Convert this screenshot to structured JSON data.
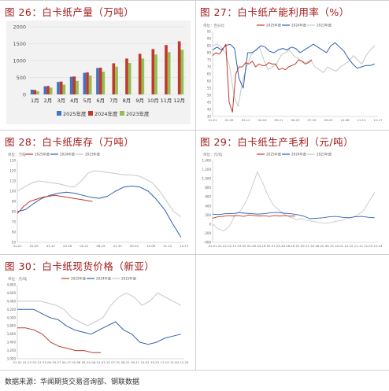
{
  "titles": {
    "p1": "图 26：白卡纸产量（万吨）",
    "p2": "图 27：白卡纸产能利用率（%）",
    "p3": "图 28：白卡纸库存（万吨）",
    "p4": "图 29：白卡纸生产毛利（元/吨）",
    "p5": "图 30：白卡纸现货价格（新亚）"
  },
  "source": "数据来源：华闻期货交易咨询部、钢联数据",
  "colors": {
    "s2025": "#4472c4",
    "s2024": "#c0392b",
    "s2023": "#92c050",
    "line2025": "#c0392b",
    "line2024": "#2f5fb3",
    "line2023": "#c8c8c8",
    "title": "#a31919"
  },
  "chart_data": [
    {
      "type": "bar",
      "title": "图 26：白卡纸产量（万吨）",
      "categories": [
        "1月",
        "2月",
        "3月",
        "4月",
        "5月",
        "6月",
        "7月",
        "8月",
        "9月",
        "10月",
        "11月",
        "12月"
      ],
      "series": [
        {
          "name": "2025年度",
          "values": [
            140,
            240,
            370,
            520,
            640,
            780,
            null,
            null,
            null,
            null,
            null,
            null
          ]
        },
        {
          "name": "2024年度",
          "values": [
            130,
            250,
            380,
            530,
            650,
            790,
            920,
            1060,
            1200,
            1340,
            1460,
            1570
          ]
        },
        {
          "name": "2023年度",
          "values": [
            90,
            200,
            290,
            400,
            560,
            670,
            820,
            930,
            1060,
            1180,
            1250,
            1320
          ]
        }
      ],
      "ylim": [
        0,
        2000
      ],
      "yticks": [
        "0",
        "500",
        "1000",
        "1500",
        "2000"
      ],
      "legend": "bottom"
    },
    {
      "type": "line",
      "title": "图 27：白卡纸产能利用率（%）",
      "unit_label": "单位：百分比",
      "ylim": [
        35,
        95
      ],
      "yticks": [
        "35",
        "40",
        "45",
        "50",
        "55",
        "60",
        "65",
        "70",
        "75",
        "80",
        "85",
        "90",
        "95"
      ],
      "xticks": [
        "01-01",
        "02-05",
        "03-12",
        "04-16",
        "05-21",
        "06-25",
        "07-30",
        "09-03",
        "10-08",
        "11-12",
        "12-17"
      ],
      "series": [
        {
          "name": "2025年度",
          "values": [
            78,
            80,
            79,
            82,
            86,
            45,
            38,
            65,
            70,
            70,
            73,
            72,
            74,
            70,
            72,
            71,
            71,
            73,
            72,
            72,
            68,
            69,
            68,
            70,
            71,
            72,
            75,
            74,
            72,
            73,
            75
          ]
        },
        {
          "name": "2024年度",
          "values": [
            82,
            84,
            82,
            85,
            86,
            83,
            62,
            55,
            80,
            80,
            82,
            85,
            84,
            81,
            80,
            82,
            83,
            82,
            84,
            83,
            80,
            82,
            84,
            86,
            84,
            82,
            80,
            85,
            87,
            84,
            81,
            76,
            72,
            69,
            70,
            71,
            71,
            72
          ]
        },
        {
          "name": "2023年度",
          "values": [
            85,
            86,
            84,
            80,
            70,
            50,
            42,
            60,
            70,
            78,
            82,
            84,
            75,
            68,
            70,
            72,
            78,
            80,
            82,
            78,
            76,
            74,
            73,
            75,
            70,
            68,
            66,
            70,
            68,
            67,
            70,
            72,
            74,
            78,
            75,
            72,
            78,
            82,
            85
          ]
        }
      ],
      "legend": "top"
    },
    {
      "type": "line",
      "title": "图 28：白卡纸库存（万吨）",
      "unit_label": "单位：万吨",
      "ylim": [
        50,
        130
      ],
      "yticks": [
        "50",
        "60",
        "70",
        "80",
        "90",
        "100",
        "110",
        "120",
        "130"
      ],
      "xticks": [
        "01-01",
        "02-05",
        "03-12",
        "04-16",
        "05-21",
        "06-25",
        "07-30",
        "09-03",
        "10-08",
        "11-12",
        "12-17"
      ],
      "series": [
        {
          "name": "2025年度",
          "values": [
            78,
            85,
            90,
            92,
            94,
            95,
            96,
            95,
            94,
            93,
            92,
            91,
            90
          ]
        },
        {
          "name": "2024年度",
          "values": [
            80,
            82,
            88,
            93,
            96,
            98,
            99,
            98,
            96,
            94,
            93,
            95,
            100,
            104,
            105,
            104,
            100,
            92,
            82,
            68,
            55
          ]
        },
        {
          "name": "2023年度",
          "values": [
            100,
            104,
            108,
            110,
            109,
            108,
            107,
            105,
            104,
            110,
            118,
            120,
            119,
            118,
            117,
            116,
            116,
            115,
            112,
            108,
            100,
            90,
            80,
            75
          ]
        }
      ],
      "legend": "top"
    },
    {
      "type": "line",
      "title": "图 29：白卡纸生产毛利（元/吨）",
      "unit_label": "单位：元/吨",
      "ylim": [
        -400,
        1400
      ],
      "yticks": [
        "-400",
        "-200",
        "0",
        "200",
        "400",
        "600",
        "800",
        "1,000",
        "1,200",
        "1,400"
      ],
      "xticks": [
        "01-01",
        "01-22",
        "02-12",
        "03-05",
        "03-26",
        "04-16",
        "05-07",
        "05-28",
        "06-18",
        "07-09",
        "07-30",
        "08-20",
        "09-10",
        "10-01",
        "10-22",
        "11-12",
        "12-03",
        "12-24"
      ],
      "series": [
        {
          "name": "2025年度",
          "values": [
            130,
            160,
            170,
            190,
            180,
            190,
            170,
            200,
            190,
            180,
            185,
            170,
            190,
            180,
            190,
            175,
            180
          ]
        },
        {
          "name": "2024年度",
          "values": [
            220,
            210,
            230,
            230,
            250,
            240,
            230,
            220,
            230,
            250,
            260,
            240,
            230,
            210,
            180,
            120,
            130,
            140,
            160,
            170,
            150,
            140,
            160,
            170,
            150,
            140
          ]
        },
        {
          "name": "2023年度",
          "values": [
            0,
            -100,
            -150,
            -50,
            200,
            300,
            500,
            800,
            1150,
            900,
            600,
            400,
            300,
            200,
            150,
            100,
            120,
            80,
            60,
            40,
            20,
            30,
            60,
            80,
            120,
            150,
            200,
            300,
            500,
            700
          ]
        }
      ],
      "legend": "top"
    },
    {
      "type": "line",
      "title": "图 30：白卡纸现货价格（新亚）",
      "unit_label": "单位：元/吨",
      "ylim": [
        3000,
        4800
      ],
      "yticks": [
        "3,000",
        "3,200",
        "3,400",
        "3,600",
        "3,800",
        "4,000",
        "4,200",
        "4,400",
        "4,600",
        "4,800"
      ],
      "xticks": [
        "01-02",
        "01-23",
        "02-13",
        "03-06",
        "03-27",
        "04-17",
        "05-08",
        "05-29",
        "06-19",
        "07-10",
        "07-31",
        "08-21",
        "09-11",
        "10-02",
        "10-23",
        "11-13",
        "12-04",
        "12-25"
      ],
      "series": [
        {
          "name": "2025年度",
          "values": [
            3750,
            3750,
            3700,
            3600,
            3400,
            3300,
            3250,
            3200,
            3200,
            3150,
            3150
          ]
        },
        {
          "name": "2024年度",
          "values": [
            4200,
            4200,
            4200,
            4100,
            4000,
            3950,
            3800,
            3700,
            3650,
            3600,
            3700,
            3800,
            3900,
            3700,
            3600,
            3400,
            3350,
            3400,
            3500,
            3550,
            3600
          ]
        },
        {
          "name": "2023年度",
          "values": [
            4400,
            4400,
            4400,
            4400,
            4350,
            4300,
            4200,
            4000,
            3900,
            3800,
            3900,
            4000,
            4300,
            4500,
            4600,
            4500,
            4300,
            4400,
            4600,
            4500,
            4400,
            4300
          ]
        }
      ],
      "legend": "top"
    }
  ]
}
